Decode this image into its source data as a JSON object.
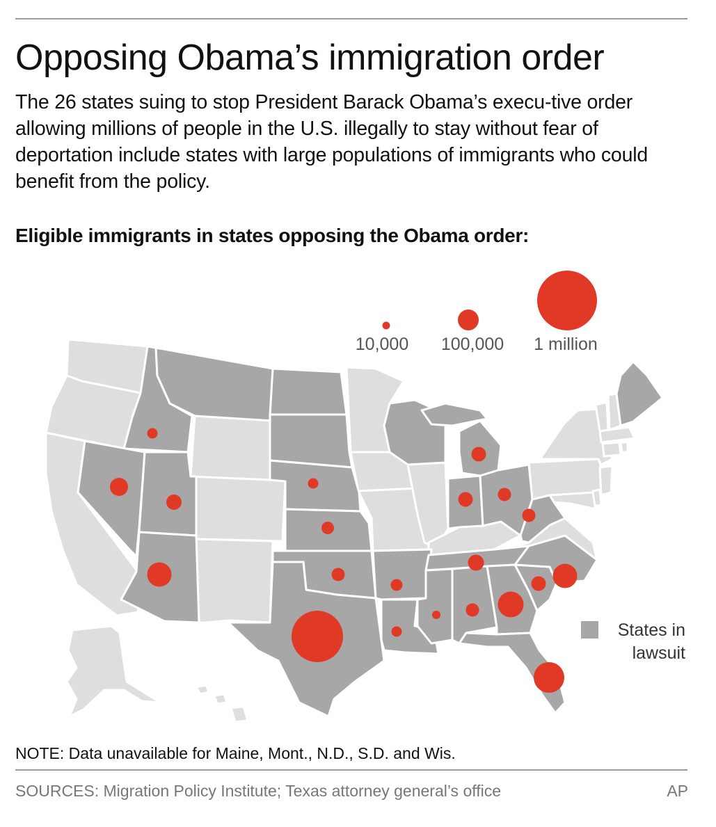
{
  "title": "Opposing Obama’s immigration order",
  "subtitle": "The 26 states suing to stop President Barack Obama’s execu-tive order allowing millions of people in the U.S. illegally to stay without fear of deportation include states with large populations of immigrants who could benefit from the policy.",
  "map_heading": "Eligible immigrants in states opposing the Obama order:",
  "legend": {
    "sizes": [
      {
        "label": "10,000",
        "value": 10000
      },
      {
        "label": "100,000",
        "value": 100000
      },
      {
        "label": "1 million",
        "value": 1000000
      }
    ],
    "key_label_line1": "States in",
    "key_label_line2": "lawsuit"
  },
  "colors": {
    "bubble": "#e03a26",
    "lawsuit_state": "#a7a7a7",
    "other_state": "#dedede",
    "border": "#ffffff"
  },
  "note": "NOTE: Data unavailable for Maine, Mont., N.D., S.D. and Wis.",
  "sources": "SOURCES: Migration Policy Institute; Texas attorney general’s office",
  "credit": "AP"
}
